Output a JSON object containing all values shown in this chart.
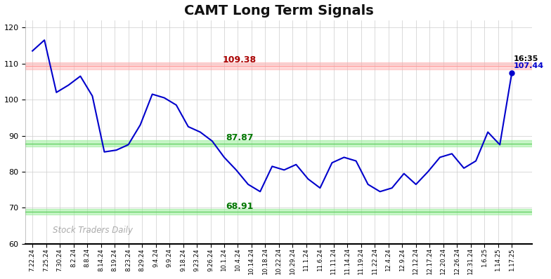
{
  "title": "CAMT Long Term Signals",
  "title_fontsize": 14,
  "background_color": "#ffffff",
  "line_color": "#0000cc",
  "line_width": 1.5,
  "ylim": [
    60,
    122
  ],
  "yticks": [
    60,
    70,
    80,
    90,
    100,
    110,
    120
  ],
  "red_line": 109.38,
  "red_band_half": 1.0,
  "green_line1": 87.87,
  "green_band1_half": 0.8,
  "green_line2": 68.91,
  "green_band2_half": 0.8,
  "annotation_red_text": "109.38",
  "annotation_green1_text": "87.87",
  "annotation_green2_text": "68.91",
  "annotation_last_time": "16:35",
  "annotation_last_value": "107.44",
  "watermark": "Stock Traders Daily",
  "x_labels": [
    "7.22.24",
    "7.25.24",
    "7.30.24",
    "8.2.24",
    "8.8.24",
    "8.14.24",
    "8.19.24",
    "8.23.24",
    "8.29.24",
    "9.4.24",
    "9.9.24",
    "9.18.24",
    "9.23.24",
    "9.26.24",
    "10.1.24",
    "10.4.24",
    "10.14.24",
    "10.18.24",
    "10.22.24",
    "10.29.24",
    "11.1.24",
    "11.6.24",
    "11.11.24",
    "11.14.24",
    "11.19.24",
    "11.22.24",
    "12.4.24",
    "12.9.24",
    "12.12.24",
    "12.17.24",
    "12.20.24",
    "12.26.24",
    "12.31.24",
    "1.6.25",
    "1.14.25",
    "1.17.25"
  ],
  "y_values": [
    113.5,
    116.5,
    102.0,
    104.0,
    106.5,
    101.0,
    85.5,
    86.0,
    87.5,
    93.0,
    101.5,
    100.5,
    98.5,
    92.5,
    91.0,
    88.5,
    84.0,
    80.5,
    76.5,
    74.5,
    81.5,
    80.5,
    82.0,
    78.0,
    75.5,
    82.5,
    84.0,
    83.0,
    76.5,
    74.5,
    75.5,
    79.5,
    76.5,
    80.0,
    84.0,
    85.0,
    81.0,
    83.0,
    91.0,
    87.5,
    107.44
  ],
  "x_indices": [
    0,
    1,
    2,
    3,
    4,
    5,
    6,
    7,
    8,
    9,
    10,
    11,
    12,
    13,
    14,
    15,
    16,
    17,
    18,
    19,
    20,
    21,
    22,
    23,
    24,
    25,
    26,
    27,
    28,
    29,
    30,
    31,
    32,
    33,
    34,
    35
  ]
}
